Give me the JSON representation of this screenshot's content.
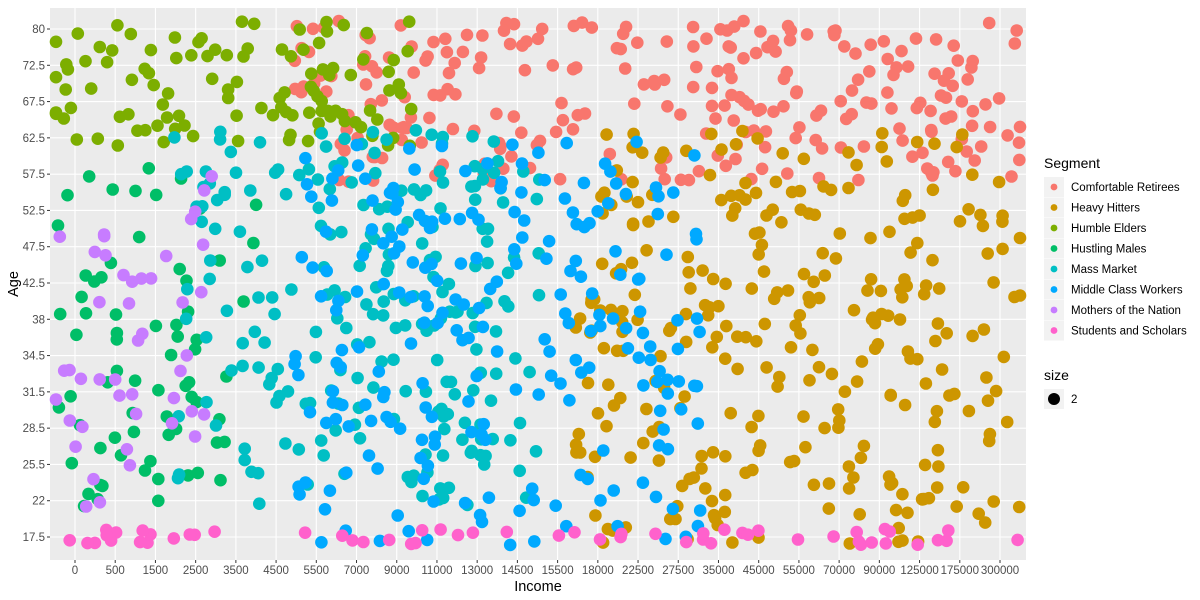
{
  "chart_data": {
    "type": "scatter",
    "xlabel": "Income",
    "ylabel": "Age",
    "x_tick_labels": [
      "0",
      "500",
      "1500",
      "2500",
      "3500",
      "4500",
      "5500",
      "7000",
      "9000",
      "11000",
      "13000",
      "14500",
      "15500",
      "18000",
      "22500",
      "27500",
      "35000",
      "45000",
      "55000",
      "70000",
      "90000",
      "125000",
      "175000",
      "300000"
    ],
    "y_tick_labels": [
      "17.5",
      "22",
      "25.5",
      "28.5",
      "31.5",
      "34.5",
      "38",
      "42.5",
      "47.5",
      "52.5",
      "57.5",
      "62.5",
      "67.5",
      "72.5",
      "80"
    ],
    "grid": true,
    "legend_placement": "right",
    "legend": {
      "color_title": "Segment",
      "size_title": "size",
      "size_value": "2"
    },
    "series": [
      {
        "name": "Comfortable Retirees",
        "color": "#F8766D",
        "age_range": [
          57.5,
          80
        ],
        "income_range": [
          5500,
          300000
        ]
      },
      {
        "name": "Heavy Hitters",
        "color": "#CD9600",
        "age_range": [
          17.5,
          62.5
        ],
        "income_range": [
          18000,
          300000
        ]
      },
      {
        "name": "Humble Elders",
        "color": "#7CAE00",
        "age_range": [
          62.5,
          80
        ],
        "income_range": [
          0,
          9000
        ]
      },
      {
        "name": "Hustling Males",
        "color": "#00BE67",
        "age_range": [
          22,
          57.5
        ],
        "income_range": [
          0,
          3500
        ]
      },
      {
        "name": "Mass Market",
        "color": "#00BFC4",
        "age_range": [
          22,
          62.5
        ],
        "income_range": [
          2500,
          14500
        ]
      },
      {
        "name": "Middle Class Workers",
        "color": "#00A9FF",
        "age_range": [
          17.5,
          62.5
        ],
        "income_range": [
          5500,
          27500
        ]
      },
      {
        "name": "Mothers of the Nation",
        "color": "#C77CFF",
        "age_range": [
          22,
          57.5
        ],
        "income_range": [
          0,
          2500
        ]
      },
      {
        "name": "Students and Scholars",
        "color": "#FF61CC",
        "age_range": [
          17.5,
          17.5
        ],
        "income_range": [
          0,
          300000
        ]
      }
    ]
  }
}
